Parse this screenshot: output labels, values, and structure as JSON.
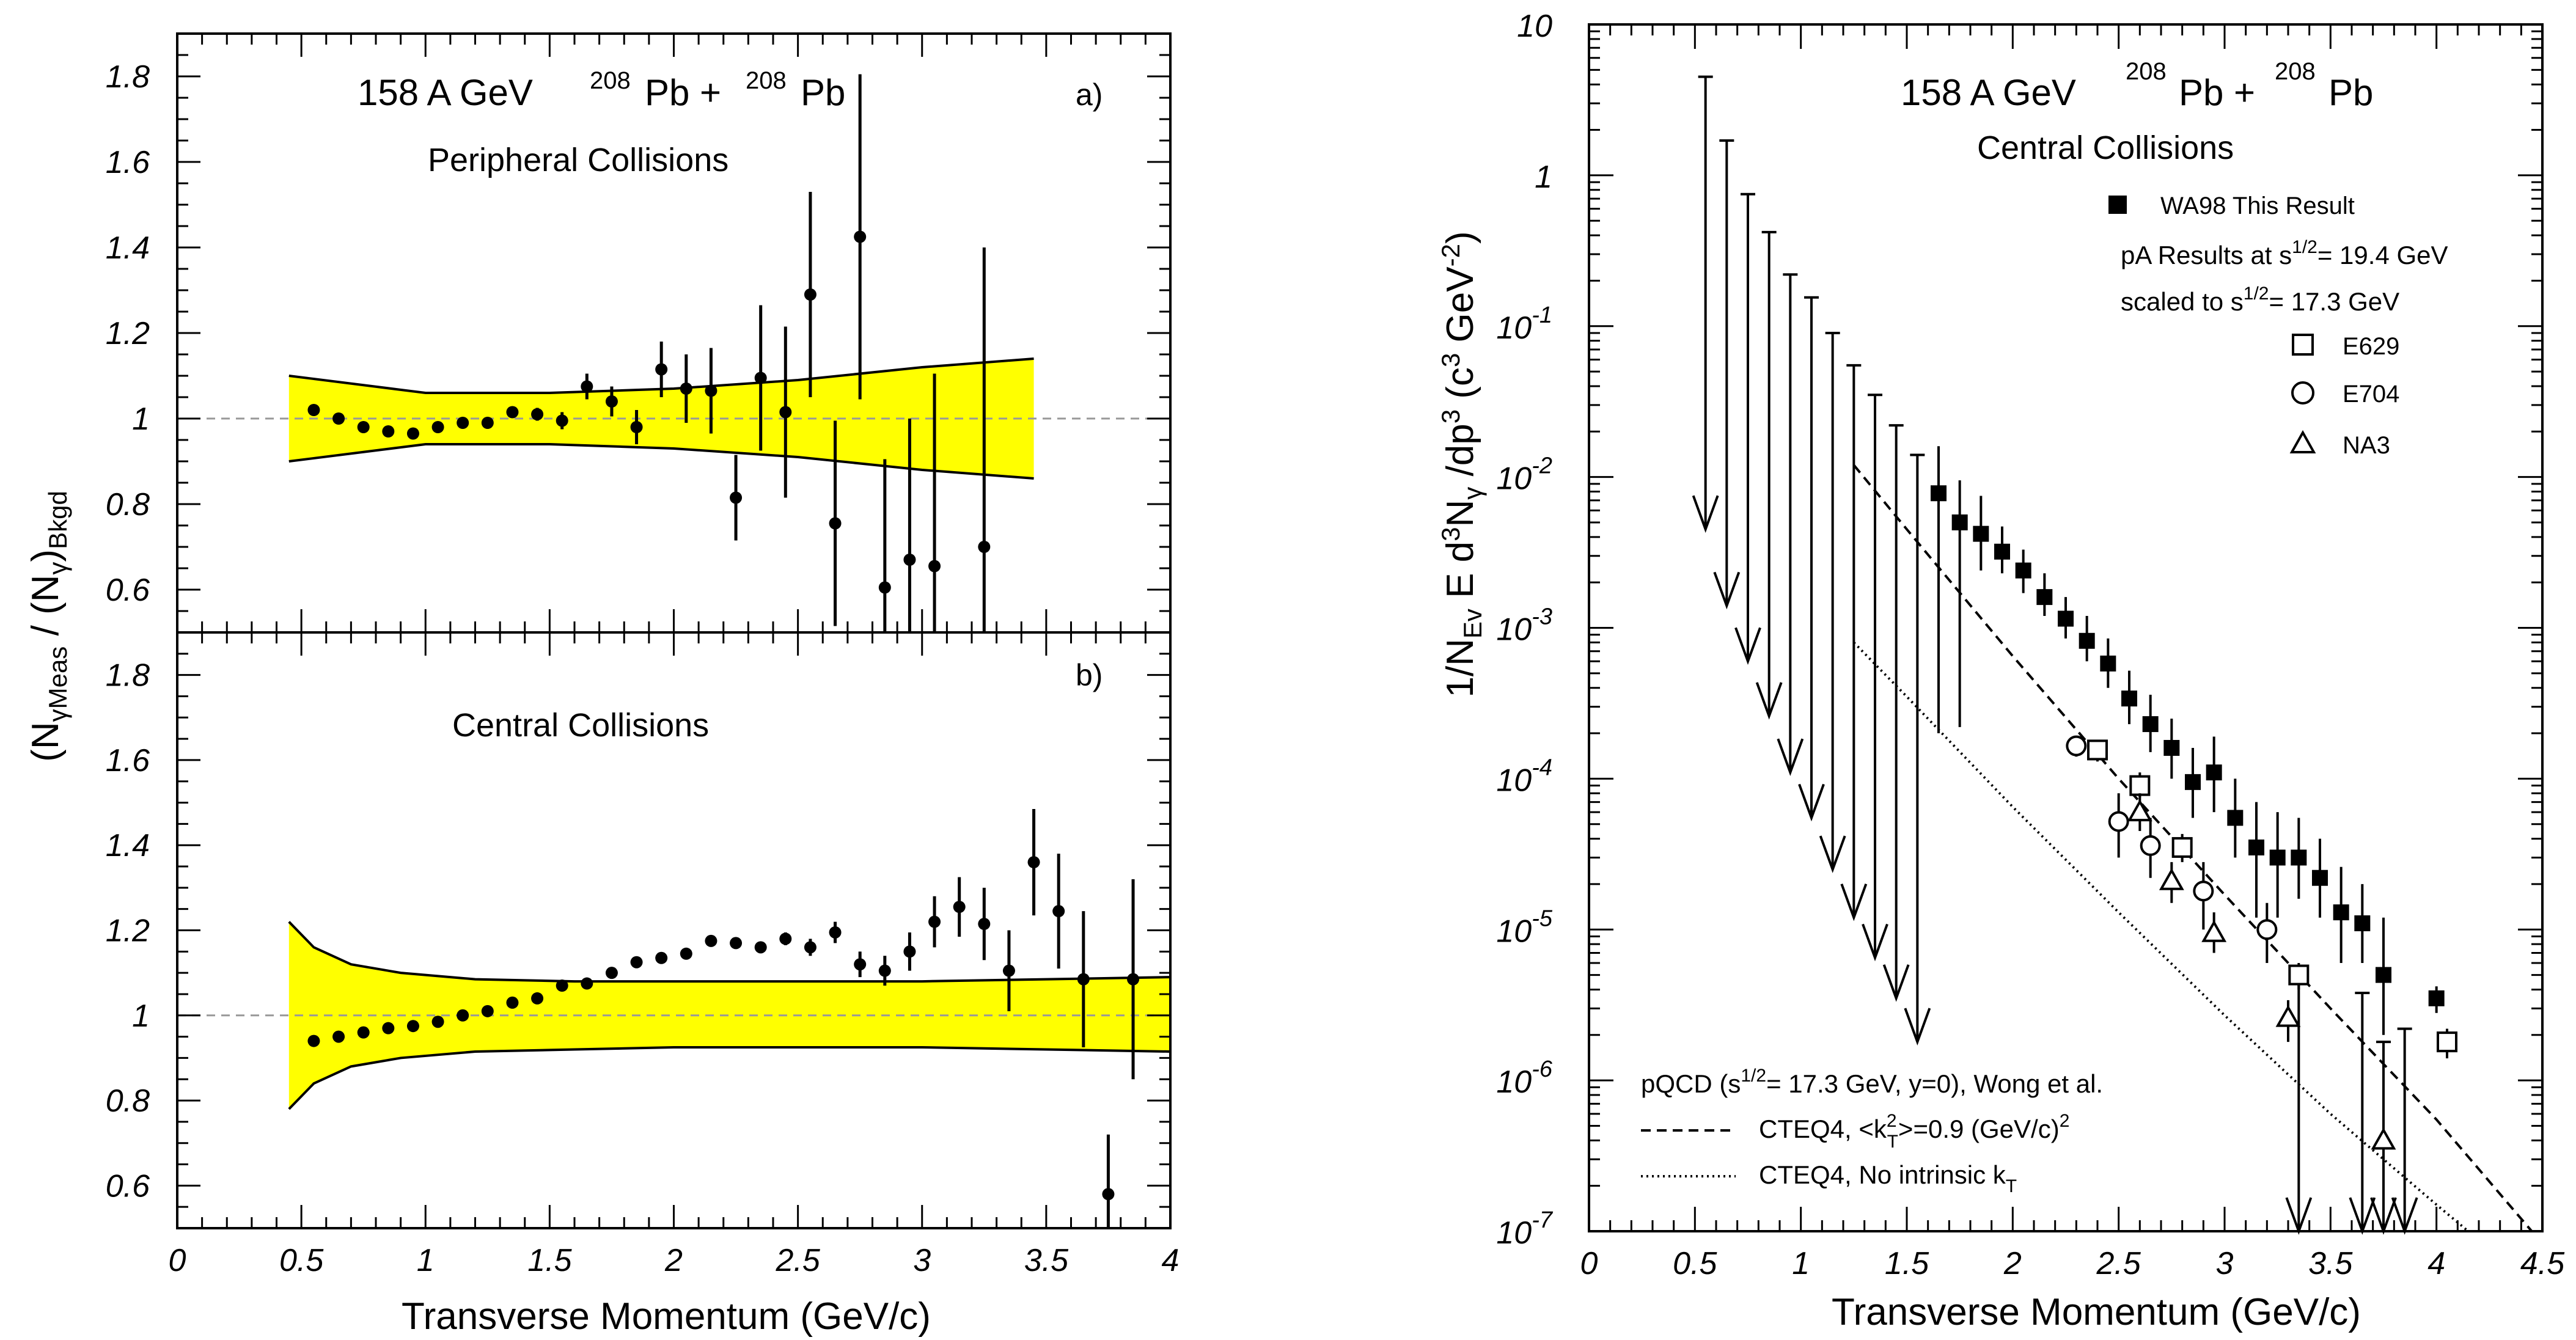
{
  "chart_data": [
    {
      "type": "scatter",
      "panel": "a)",
      "title_energy": "158 A GeV",
      "title_nuc1": "208",
      "title_pb1": "Pb +",
      "title_nuc2": "208",
      "title_pb2": "Pb",
      "subtitle": "Peripheral Collisions",
      "xlim": [
        0,
        4
      ],
      "ylim": [
        0.5,
        1.9
      ],
      "yticks": [
        0.6,
        0.8,
        1,
        1.2,
        1.4,
        1.6,
        1.8
      ],
      "ytick_labels": [
        "0.6",
        "0.8",
        "1",
        "1.2",
        "1.4",
        "1.6",
        "1.8"
      ],
      "reference_line": 1,
      "band": {
        "x": [
          0.45,
          1.0,
          1.5,
          2.0,
          2.5,
          3.0,
          3.45
        ],
        "upper": [
          1.1,
          1.06,
          1.06,
          1.07,
          1.09,
          1.12,
          1.14
        ],
        "lower": [
          0.9,
          0.94,
          0.94,
          0.93,
          0.91,
          0.88,
          0.86
        ]
      },
      "points": [
        {
          "x": 0.55,
          "y": 1.02,
          "err": 0.005
        },
        {
          "x": 0.65,
          "y": 1.0,
          "err": 0.005
        },
        {
          "x": 0.75,
          "y": 0.98,
          "err": 0.005
        },
        {
          "x": 0.85,
          "y": 0.97,
          "err": 0.005
        },
        {
          "x": 0.95,
          "y": 0.965,
          "err": 0.005
        },
        {
          "x": 1.05,
          "y": 0.98,
          "err": 0.005
        },
        {
          "x": 1.15,
          "y": 0.99,
          "err": 0.005
        },
        {
          "x": 1.25,
          "y": 0.99,
          "err": 0.008
        },
        {
          "x": 1.35,
          "y": 1.015,
          "err": 0.012
        },
        {
          "x": 1.45,
          "y": 1.01,
          "err": 0.015
        },
        {
          "x": 1.55,
          "y": 0.995,
          "err": 0.02
        },
        {
          "x": 1.65,
          "y": 1.075,
          "err": 0.03
        },
        {
          "x": 1.75,
          "y": 1.04,
          "err": 0.035
        },
        {
          "x": 1.85,
          "y": 0.98,
          "err": 0.04
        },
        {
          "x": 1.95,
          "y": 1.115,
          "err": 0.065
        },
        {
          "x": 2.05,
          "y": 1.07,
          "err": 0.08
        },
        {
          "x": 2.15,
          "y": 1.065,
          "err": 0.1
        },
        {
          "x": 2.25,
          "y": 0.815,
          "err": 0.1
        },
        {
          "x": 2.35,
          "y": 1.095,
          "err": 0.17
        },
        {
          "x": 2.45,
          "y": 1.015,
          "err": 0.2
        },
        {
          "x": 2.55,
          "y": 1.29,
          "err": 0.24
        },
        {
          "x": 2.65,
          "y": 0.755,
          "err": 0.24
        },
        {
          "x": 2.75,
          "y": 1.425,
          "err": 0.38
        },
        {
          "x": 2.85,
          "y": 0.605,
          "err": 0.3
        },
        {
          "x": 2.95,
          "y": 0.67,
          "err": 0.33
        },
        {
          "x": 3.05,
          "y": 0.655,
          "err": 0.45
        },
        {
          "x": 3.25,
          "y": 0.7,
          "err": 0.7
        }
      ]
    },
    {
      "type": "scatter",
      "panel": "b)",
      "subtitle": "Central Collisions",
      "xlim": [
        0,
        4
      ],
      "ylim": [
        0.5,
        1.9
      ],
      "yticks": [
        0.6,
        0.8,
        1,
        1.2,
        1.4,
        1.6,
        1.8
      ],
      "ytick_labels": [
        "0.6",
        "0.8",
        "1",
        "1.2",
        "1.4",
        "1.6",
        "1.8"
      ],
      "xticks": [
        0,
        0.5,
        1,
        1.5,
        2,
        2.5,
        3,
        3.5,
        4
      ],
      "xtick_labels": [
        "0",
        "0.5",
        "1",
        "1.5",
        "2",
        "2.5",
        "3",
        "3.5",
        "4"
      ],
      "xlabel": "Transverse Momentum (GeV/c)",
      "ylabel": "(Nγ)Meas / (Nγ)Bkgd",
      "reference_line": 1,
      "band": {
        "x": [
          0.45,
          0.55,
          0.7,
          0.9,
          1.2,
          1.6,
          2.0,
          2.5,
          3.0,
          3.5,
          4.0
        ],
        "upper": [
          1.22,
          1.16,
          1.12,
          1.1,
          1.085,
          1.08,
          1.08,
          1.08,
          1.08,
          1.085,
          1.09
        ],
        "lower": [
          0.78,
          0.84,
          0.88,
          0.9,
          0.915,
          0.92,
          0.925,
          0.925,
          0.925,
          0.92,
          0.915
        ]
      },
      "points": [
        {
          "x": 0.55,
          "y": 0.94,
          "err": 0.005
        },
        {
          "x": 0.65,
          "y": 0.95,
          "err": 0.005
        },
        {
          "x": 0.75,
          "y": 0.96,
          "err": 0.005
        },
        {
          "x": 0.85,
          "y": 0.97,
          "err": 0.005
        },
        {
          "x": 0.95,
          "y": 0.975,
          "err": 0.005
        },
        {
          "x": 1.05,
          "y": 0.985,
          "err": 0.005
        },
        {
          "x": 1.15,
          "y": 1.0,
          "err": 0.005
        },
        {
          "x": 1.25,
          "y": 1.01,
          "err": 0.005
        },
        {
          "x": 1.35,
          "y": 1.03,
          "err": 0.005
        },
        {
          "x": 1.45,
          "y": 1.04,
          "err": 0.005
        },
        {
          "x": 1.55,
          "y": 1.07,
          "err": 0.005
        },
        {
          "x": 1.65,
          "y": 1.075,
          "err": 0.005
        },
        {
          "x": 1.75,
          "y": 1.1,
          "err": 0.005
        },
        {
          "x": 1.85,
          "y": 1.125,
          "err": 0.005
        },
        {
          "x": 1.95,
          "y": 1.135,
          "err": 0.008
        },
        {
          "x": 2.05,
          "y": 1.145,
          "err": 0.008
        },
        {
          "x": 2.15,
          "y": 1.175,
          "err": 0.01
        },
        {
          "x": 2.25,
          "y": 1.17,
          "err": 0.01
        },
        {
          "x": 2.35,
          "y": 1.16,
          "err": 0.012
        },
        {
          "x": 2.45,
          "y": 1.18,
          "err": 0.015
        },
        {
          "x": 2.55,
          "y": 1.16,
          "err": 0.02
        },
        {
          "x": 2.65,
          "y": 1.195,
          "err": 0.025
        },
        {
          "x": 2.75,
          "y": 1.12,
          "err": 0.03
        },
        {
          "x": 2.85,
          "y": 1.105,
          "err": 0.035
        },
        {
          "x": 2.95,
          "y": 1.15,
          "err": 0.045
        },
        {
          "x": 3.05,
          "y": 1.22,
          "err": 0.06
        },
        {
          "x": 3.15,
          "y": 1.255,
          "err": 0.07
        },
        {
          "x": 3.25,
          "y": 1.215,
          "err": 0.085
        },
        {
          "x": 3.35,
          "y": 1.105,
          "err": 0.095
        },
        {
          "x": 3.45,
          "y": 1.36,
          "err": 0.125
        },
        {
          "x": 3.55,
          "y": 1.245,
          "err": 0.135
        },
        {
          "x": 3.65,
          "y": 1.085,
          "err": 0.16
        },
        {
          "x": 3.75,
          "y": 0.58,
          "err": 0.14
        },
        {
          "x": 3.85,
          "y": 1.085,
          "err": 0.235
        }
      ]
    },
    {
      "type": "scatter",
      "log_y": true,
      "title_energy": "158 A GeV",
      "title_nuc1": "208",
      "title_pb1": "Pb +",
      "title_nuc2": "208",
      "title_pb2": "Pb",
      "subtitle": "Central Collisions",
      "xlim": [
        0,
        4.5
      ],
      "ylim": [
        1e-07,
        10
      ],
      "xticks": [
        0,
        0.5,
        1,
        1.5,
        2,
        2.5,
        3,
        3.5,
        4,
        4.5
      ],
      "xtick_labels": [
        "0",
        "0.5",
        "1",
        "1.5",
        "2",
        "2.5",
        "3",
        "3.5",
        "4",
        "4.5"
      ],
      "ytick_exponents": [
        -7,
        -6,
        -5,
        -4,
        -3,
        -2,
        -1,
        0,
        1
      ],
      "ytick_base": "10",
      "xlabel": "Transverse Momentum (GeV/c)",
      "ylabel": "1/N_Ev E d³Nγ/dp³ (c³ GeV⁻²)",
      "legend": {
        "wa98": "WA98 This Result",
        "pa_line1": "pA Results at s",
        "pa_line1_exp": "1/2",
        "pa_line1_tail": "= 19.4 GeV",
        "pa_line2": "scaled to  s",
        "pa_line2_exp": "1/2",
        "pa_line2_tail": "= 17.3 GeV",
        "e629": "E629",
        "e704": "E704",
        "na3": "NA3",
        "pqcd_head": "pQCD  (s",
        "pqcd_exp": "1/2",
        "pqcd_tail": "= 17.3 GeV, y=0), Wong et al.",
        "cteq_dashed_a": "CTEQ4, <k",
        "cteq_dashed_sup": "2",
        "cteq_dashed_sub": "T",
        "cteq_dashed_b": ">=0.9 (GeV/c)",
        "cteq_dashed_exp": "2",
        "cteq_dotted": "CTEQ4, No intrinsic k",
        "cteq_dotted_sub": "T"
      },
      "upper_limits": [
        {
          "x": 0.55,
          "top": 4.5,
          "bottom": 0.0045
        },
        {
          "x": 0.65,
          "top": 1.7,
          "bottom": 0.0014
        },
        {
          "x": 0.75,
          "top": 0.75,
          "bottom": 0.0006
        },
        {
          "x": 0.85,
          "top": 0.42,
          "bottom": 0.00026
        },
        {
          "x": 0.95,
          "top": 0.22,
          "bottom": 0.00011
        },
        {
          "x": 1.05,
          "top": 0.155,
          "bottom": 5.5e-05
        },
        {
          "x": 1.15,
          "top": 0.09,
          "bottom": 2.5e-05
        },
        {
          "x": 1.25,
          "top": 0.055,
          "bottom": 1.2e-05
        },
        {
          "x": 1.35,
          "top": 0.035,
          "bottom": 6.5e-06
        },
        {
          "x": 1.45,
          "top": 0.022,
          "bottom": 3.5e-06
        },
        {
          "x": 1.55,
          "top": 0.014,
          "bottom": 1.8e-06
        },
        {
          "x": 3.35,
          "top": 5e-06,
          "bottom": 1e-07
        },
        {
          "x": 3.65,
          "top": 3.8e-06,
          "bottom": 1e-07
        },
        {
          "x": 3.75,
          "top": 1.8e-06,
          "bottom": 1e-07
        },
        {
          "x": 3.85,
          "top": 2.2e-06,
          "bottom": 1e-07
        }
      ],
      "wa98": [
        {
          "x": 1.65,
          "y": 0.0078,
          "lo": 0.0002,
          "hi": 0.016
        },
        {
          "x": 1.75,
          "y": 0.005,
          "lo": 0.00022,
          "hi": 0.0095
        },
        {
          "x": 1.85,
          "y": 0.0042,
          "lo": 0.0024,
          "hi": 0.0075
        },
        {
          "x": 1.95,
          "y": 0.0032,
          "lo": 0.0023,
          "hi": 0.0047
        },
        {
          "x": 2.05,
          "y": 0.0024,
          "lo": 0.0017,
          "hi": 0.0033
        },
        {
          "x": 2.15,
          "y": 0.0016,
          "lo": 0.0012,
          "hi": 0.0023
        },
        {
          "x": 2.25,
          "y": 0.00115,
          "lo": 0.00085,
          "hi": 0.0016
        },
        {
          "x": 2.35,
          "y": 0.00082,
          "lo": 0.0006,
          "hi": 0.0012
        },
        {
          "x": 2.45,
          "y": 0.00058,
          "lo": 0.0004,
          "hi": 0.00085
        },
        {
          "x": 2.55,
          "y": 0.00034,
          "lo": 0.00023,
          "hi": 0.00052
        },
        {
          "x": 2.65,
          "y": 0.00023,
          "lo": 0.00015,
          "hi": 0.00036
        },
        {
          "x": 2.75,
          "y": 0.00016,
          "lo": 0.0001,
          "hi": 0.00025
        },
        {
          "x": 2.85,
          "y": 9.5e-05,
          "lo": 5.5e-05,
          "hi": 0.00016
        },
        {
          "x": 2.95,
          "y": 0.00011,
          "lo": 6e-05,
          "hi": 0.00019
        },
        {
          "x": 3.05,
          "y": 5.5e-05,
          "lo": 3e-05,
          "hi": 0.0001
        },
        {
          "x": 3.15,
          "y": 3.5e-05,
          "lo": 1.2e-05,
          "hi": 7e-05
        },
        {
          "x": 3.25,
          "y": 3e-05,
          "lo": 1.2e-05,
          "hi": 6e-05
        },
        {
          "x": 3.35,
          "y": 3e-05,
          "lo": 1.6e-05,
          "hi": 5.5e-05
        },
        {
          "x": 3.45,
          "y": 2.2e-05,
          "lo": 1.2e-05,
          "hi": 4e-05
        },
        {
          "x": 3.55,
          "y": 1.3e-05,
          "lo": 6e-06,
          "hi": 2.6e-05
        },
        {
          "x": 3.65,
          "y": 1.1e-05,
          "lo": 6e-06,
          "hi": 2e-05
        },
        {
          "x": 3.75,
          "y": 5e-06,
          "lo": 2e-06,
          "hi": 1.2e-05
        },
        {
          "x": 4.0,
          "y": 3.5e-06,
          "lo": 2.8e-06,
          "hi": 4.2e-06
        }
      ],
      "e629": [
        {
          "x": 2.4,
          "y": 0.000155,
          "lo": 0.00013,
          "hi": 0.00018
        },
        {
          "x": 2.6,
          "y": 9e-05,
          "lo": 7.5e-05,
          "hi": 0.00011
        },
        {
          "x": 2.8,
          "y": 3.5e-05,
          "lo": 2.8e-05,
          "hi": 4.3e-05
        },
        {
          "x": 3.35,
          "y": 5e-06,
          "lo": 4e-06,
          "hi": 6e-06
        },
        {
          "x": 4.05,
          "y": 1.8e-06,
          "lo": 1.4e-06,
          "hi": 2.2e-06
        }
      ],
      "e704": [
        {
          "x": 2.3,
          "y": 0.000165,
          "lo": 0.00014,
          "hi": 0.00019
        },
        {
          "x": 2.5,
          "y": 5.2e-05,
          "lo": 3e-05,
          "hi": 8e-05
        },
        {
          "x": 2.65,
          "y": 3.6e-05,
          "lo": 2.2e-05,
          "hi": 5.5e-05
        },
        {
          "x": 2.9,
          "y": 1.8e-05,
          "lo": 1e-05,
          "hi": 2.8e-05
        },
        {
          "x": 3.2,
          "y": 1e-05,
          "lo": 6e-06,
          "hi": 1.5e-05
        }
      ],
      "na3": [
        {
          "x": 2.6,
          "y": 6e-05,
          "lo": 4.5e-05,
          "hi": 8e-05
        },
        {
          "x": 2.75,
          "y": 2.1e-05,
          "lo": 1.5e-05,
          "hi": 2.8e-05
        },
        {
          "x": 2.95,
          "y": 9.5e-06,
          "lo": 7e-06,
          "hi": 1.3e-05
        },
        {
          "x": 3.3,
          "y": 2.6e-06,
          "lo": 1.8e-06,
          "hi": 3.4e-06
        },
        {
          "x": 3.75,
          "y": 4e-07,
          "lo": 2.5e-07,
          "hi": 6e-07
        }
      ],
      "curve_dashed": {
        "x": [
          1.25,
          1.5,
          2.0,
          2.5,
          3.0,
          3.5,
          4.0,
          4.45
        ],
        "y": [
          0.012,
          0.0045,
          0.00065,
          0.0001,
          1.7e-05,
          3e-06,
          5.5e-07,
          1e-07
        ]
      },
      "curve_dotted": {
        "x": [
          1.25,
          1.5,
          2.0,
          2.5,
          3.0,
          3.5,
          4.0,
          4.15
        ],
        "y": [
          0.0008,
          0.00035,
          6.5e-05,
          1.3e-05,
          2.7e-06,
          6e-07,
          1.5e-07,
          1e-07
        ]
      }
    }
  ]
}
